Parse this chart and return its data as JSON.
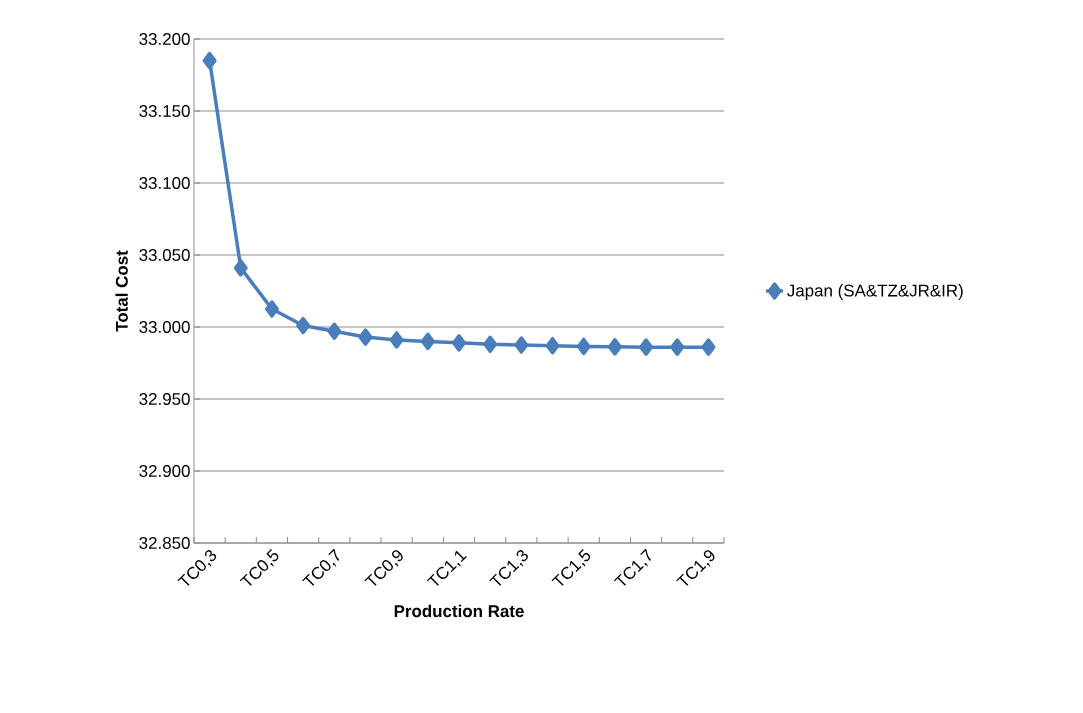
{
  "chart_data": {
    "type": "line",
    "xlabel": "Production Rate",
    "ylabel": "Total Cost",
    "categories": [
      "TC0,3",
      null,
      "TC0,5",
      null,
      "TC0,7",
      null,
      "TC0,9",
      null,
      "TC1,1",
      null,
      "TC1,3",
      null,
      "TC1,5",
      null,
      "TC1,7",
      null,
      "TC1,9"
    ],
    "series": [
      {
        "name": "Japan (SA&TZ&JR&IR)",
        "color": "#4a7ebb",
        "values": [
          33185,
          33041,
          33012.5,
          33001,
          32997,
          32993,
          32991,
          32990,
          32989,
          32988,
          32987.5,
          32987,
          32986.5,
          32986.2,
          32986,
          32986,
          32986
        ]
      }
    ],
    "ylim": [
      32850,
      33200
    ],
    "yticks": [
      {
        "value": 32850,
        "label": "32.850"
      },
      {
        "value": 32900,
        "label": "32.900"
      },
      {
        "value": 32950,
        "label": "32.950"
      },
      {
        "value": 33000,
        "label": "33.000"
      },
      {
        "value": 33050,
        "label": "33.050"
      },
      {
        "value": 33100,
        "label": "33.100"
      },
      {
        "value": 33150,
        "label": "33.150"
      },
      {
        "value": 33200,
        "label": "33.200"
      }
    ],
    "grid": "y",
    "legend": "right",
    "marker": "diamond",
    "line_style": "solid"
  }
}
